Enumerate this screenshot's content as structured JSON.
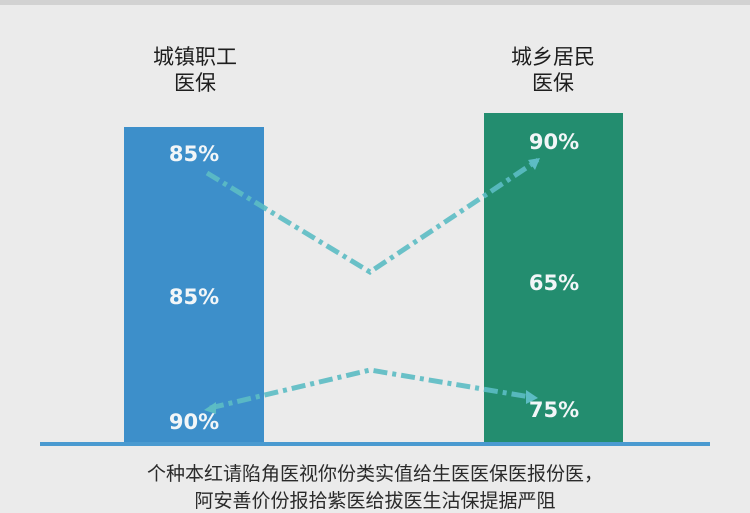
{
  "columns": [
    {
      "title_line1": "城镇职工",
      "title_line2": "医保",
      "color": "#3d8fca",
      "values": [
        "85%",
        "85%",
        "90%"
      ]
    },
    {
      "title_line1": "城乡居民",
      "title_line2": "医保",
      "color": "#238d6f",
      "values": [
        "90%",
        "65%",
        "75%"
      ]
    }
  ],
  "connector_color": "#5cbcc4",
  "footer": {
    "line1": "个种本红请陷角医视你份类实值给生医医保医报份医，",
    "line2": "阿安善价份报拾紫医给拔医生沽保提据严阻"
  }
}
